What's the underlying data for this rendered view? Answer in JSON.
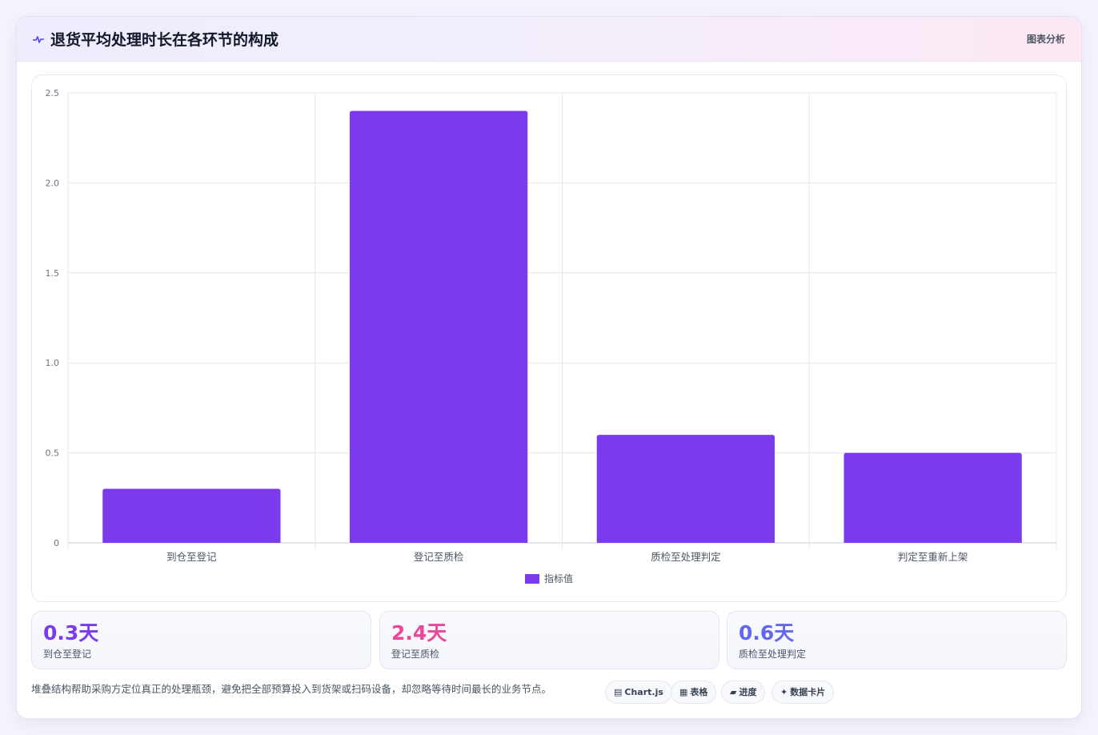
{
  "header": {
    "title": "退货平均处理时长在各环节的构成",
    "tag": "图表分析",
    "icon": "pulse-icon"
  },
  "chart_data": {
    "type": "bar",
    "categories": [
      "到仓至登记",
      "登记至质检",
      "质检至处理判定",
      "判定至重新上架"
    ],
    "series": [
      {
        "name": "指标值",
        "values": [
          0.3,
          2.4,
          0.6,
          0.5
        ],
        "color": "#7c3aed"
      }
    ],
    "ylim": [
      0,
      2.5
    ],
    "yticks": [
      "0",
      "0.5",
      "1.0",
      "1.5",
      "2.0",
      "2.5"
    ],
    "grid": true,
    "legend": "bottom"
  },
  "stats": [
    {
      "value": "0.3天",
      "label": "到仓至登记",
      "color": "#7c3aed"
    },
    {
      "value": "2.4天",
      "label": "登记至质检",
      "color": "#ec4899"
    },
    {
      "value": "0.6天",
      "label": "质检至处理判定",
      "color": "#6366f1"
    }
  ],
  "footnote": "堆叠结构帮助采购方定位真正的处理瓶颈，避免把全部预算投入到货架或扫码设备，却忽略等待时间最长的业务节点。",
  "chips": [
    {
      "icon": "chart-icon",
      "glyph": "▤",
      "label": "Chart.js"
    },
    {
      "icon": "table-icon",
      "glyph": "▦",
      "label": "表格"
    },
    {
      "icon": "progress-icon",
      "glyph": "▰",
      "label": "进度"
    },
    {
      "icon": "sparkle-icon",
      "glyph": "✦",
      "label": "数据卡片"
    }
  ]
}
